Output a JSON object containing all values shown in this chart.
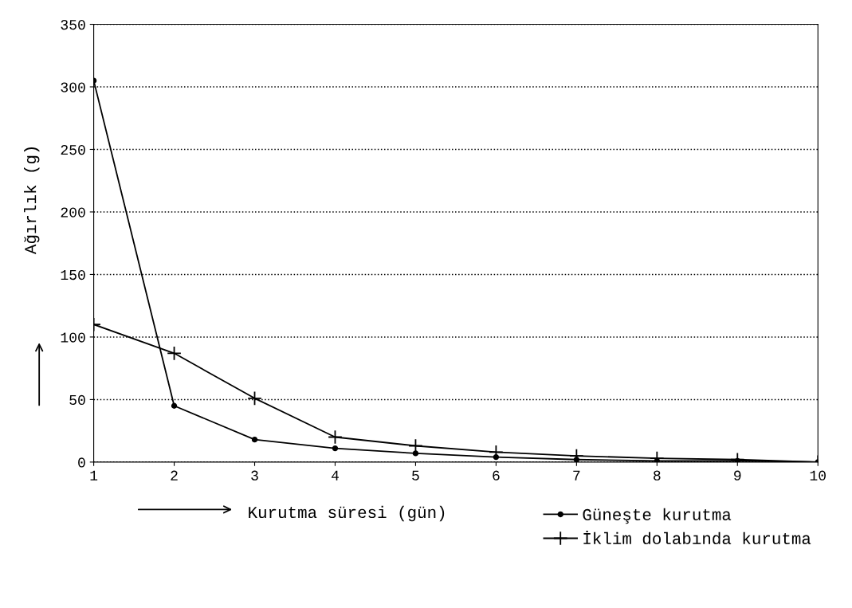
{
  "chart_data": {
    "type": "line",
    "xlabel": "Kurutma süresi (gün)",
    "ylabel": "Ağırlık (g)",
    "x": [
      1,
      2,
      3,
      4,
      5,
      6,
      7,
      8,
      9,
      10
    ],
    "series": [
      {
        "name": "Güneşte kurutma",
        "color": "#000000",
        "marker": "circle",
        "values": [
          305,
          45,
          18,
          11,
          7,
          4,
          2,
          1,
          1,
          0
        ]
      },
      {
        "name": "İklim dolabında kurutma",
        "color": "#000000",
        "marker": "cross",
        "values": [
          110,
          87,
          51,
          20,
          13,
          8,
          5,
          3,
          2,
          0
        ]
      }
    ],
    "xlim": [
      1,
      10
    ],
    "xticks": [
      1,
      2,
      3,
      4,
      5,
      6,
      7,
      8,
      9,
      10
    ],
    "ylim": [
      0,
      350
    ],
    "yticks": [
      0,
      50,
      100,
      150,
      200,
      250,
      300,
      350
    ],
    "grid": "y",
    "legend": "bottom right",
    "line_style": "solid"
  }
}
